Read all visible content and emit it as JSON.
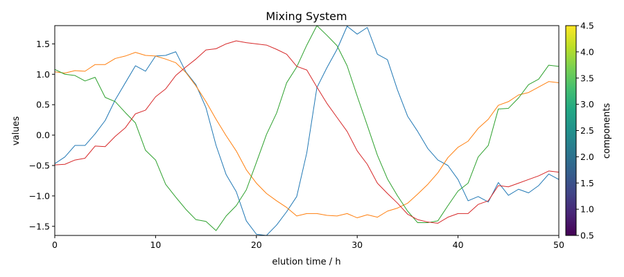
{
  "chart_data": {
    "type": "line",
    "title": "Mixing System",
    "xlabel": "elution time / h",
    "ylabel": "values",
    "xlim": [
      0,
      50
    ],
    "ylim": [
      -1.65,
      1.8
    ],
    "xticks": [
      "0",
      "10",
      "20",
      "30",
      "40",
      "50"
    ],
    "yticks": [
      "−1.5",
      "−1.0",
      "−0.5",
      "0.0",
      "0.5",
      "1.0",
      "1.5"
    ],
    "grid": false,
    "x": [
      0,
      1,
      2,
      3,
      4,
      5,
      6,
      7,
      8,
      9,
      10,
      11,
      12,
      13,
      14,
      15,
      16,
      17,
      18,
      19,
      20,
      21,
      22,
      23,
      24,
      25,
      26,
      27,
      28,
      29,
      30,
      31,
      32,
      33,
      34,
      35,
      36,
      37,
      38,
      39,
      40,
      41,
      42,
      43,
      44,
      45,
      46,
      47,
      48,
      49,
      50
    ],
    "series": [
      {
        "color": "#1f77b4",
        "values": [
          -0.47,
          -0.36,
          -0.17,
          -0.17,
          0.02,
          0.24,
          0.58,
          0.86,
          1.14,
          1.05,
          1.3,
          1.31,
          1.37,
          1.04,
          0.83,
          0.45,
          -0.17,
          -0.65,
          -0.93,
          -1.41,
          -1.63,
          -1.65,
          -1.48,
          -1.26,
          -1.01,
          -0.29,
          0.78,
          1.11,
          1.41,
          1.79,
          1.66,
          1.77,
          1.33,
          1.24,
          0.74,
          0.31,
          0.06,
          -0.22,
          -0.41,
          -0.5,
          -0.73,
          -1.08,
          -1.01,
          -1.1,
          -0.78,
          -0.99,
          -0.89,
          -0.95,
          -0.83,
          -0.64,
          -0.73
        ]
      },
      {
        "color": "#ff7f0e",
        "values": [
          1.04,
          1.02,
          1.06,
          1.05,
          1.16,
          1.16,
          1.26,
          1.3,
          1.36,
          1.31,
          1.3,
          1.25,
          1.19,
          1.03,
          0.81,
          0.55,
          0.26,
          -0.01,
          -0.26,
          -0.57,
          -0.79,
          -0.96,
          -1.08,
          -1.19,
          -1.33,
          -1.29,
          -1.29,
          -1.32,
          -1.33,
          -1.29,
          -1.36,
          -1.31,
          -1.35,
          -1.25,
          -1.2,
          -1.12,
          -0.97,
          -0.81,
          -0.62,
          -0.37,
          -0.2,
          -0.1,
          0.11,
          0.26,
          0.49,
          0.55,
          0.66,
          0.7,
          0.79,
          0.88,
          0.86
        ]
      },
      {
        "color": "#2ca02c",
        "values": [
          1.08,
          1.0,
          0.98,
          0.89,
          0.95,
          0.62,
          0.55,
          0.37,
          0.2,
          -0.25,
          -0.41,
          -0.81,
          -1.02,
          -1.22,
          -1.39,
          -1.42,
          -1.57,
          -1.33,
          -1.16,
          -0.9,
          -0.45,
          0.01,
          0.36,
          0.86,
          1.12,
          1.48,
          1.8,
          1.64,
          1.47,
          1.14,
          0.64,
          0.16,
          -0.33,
          -0.72,
          -1.0,
          -1.25,
          -1.44,
          -1.44,
          -1.41,
          -1.16,
          -0.92,
          -0.79,
          -0.36,
          -0.17,
          0.43,
          0.44,
          0.61,
          0.83,
          0.92,
          1.15,
          1.13
        ]
      },
      {
        "color": "#d62728",
        "values": [
          -0.49,
          -0.48,
          -0.41,
          -0.38,
          -0.18,
          -0.19,
          -0.02,
          0.12,
          0.35,
          0.41,
          0.63,
          0.76,
          0.98,
          1.12,
          1.25,
          1.4,
          1.42,
          1.5,
          1.55,
          1.52,
          1.5,
          1.48,
          1.41,
          1.33,
          1.13,
          1.07,
          0.79,
          0.52,
          0.29,
          0.06,
          -0.26,
          -0.48,
          -0.79,
          -0.96,
          -1.12,
          -1.3,
          -1.39,
          -1.43,
          -1.45,
          -1.35,
          -1.29,
          -1.29,
          -1.14,
          -1.08,
          -0.83,
          -0.85,
          -0.79,
          -0.73,
          -0.67,
          -0.59,
          -0.61
        ]
      }
    ],
    "colorbar": {
      "label": "components",
      "range": [
        0.5,
        4.5
      ],
      "ticks": [
        "0.5",
        "1.0",
        "1.5",
        "2.0",
        "2.5",
        "3.0",
        "3.5",
        "4.0",
        "4.5"
      ],
      "colormap": "viridis",
      "colors": [
        "#440154",
        "#482475",
        "#414487",
        "#355f8d",
        "#2a788e",
        "#21918c",
        "#22a884",
        "#44bf70",
        "#7ad151",
        "#bddf26",
        "#fde725"
      ]
    }
  }
}
